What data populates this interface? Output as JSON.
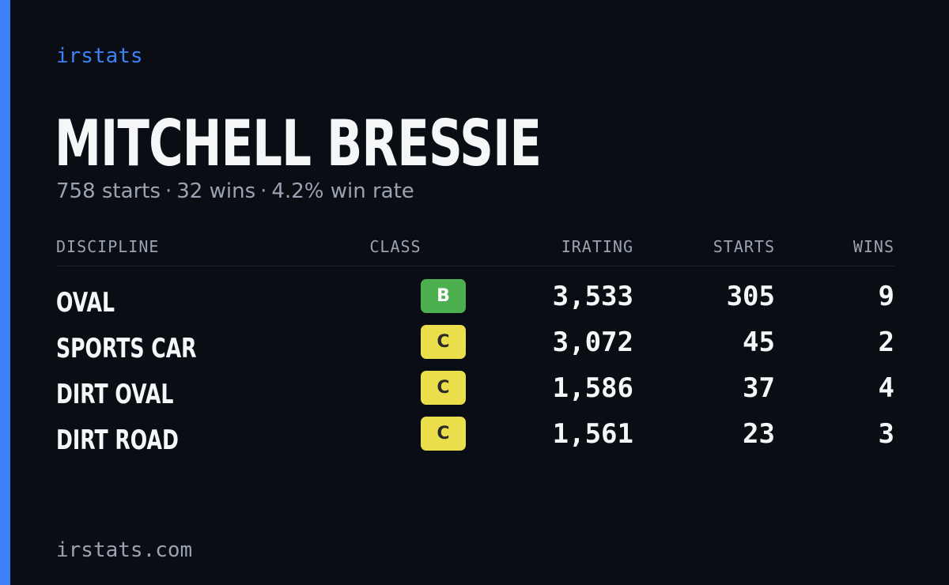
{
  "brand": "irstats",
  "driver": {
    "name": "MITCHELL BRESSIE",
    "starts_text": "758 starts",
    "wins_text": "32 wins",
    "win_rate_text": "4.2% win rate",
    "separator": "·"
  },
  "table": {
    "headers": {
      "discipline": "DISCIPLINE",
      "class": "CLASS",
      "irating": "IRATING",
      "starts": "STARTS",
      "wins": "WINS"
    },
    "rows": [
      {
        "discipline": "OVAL",
        "class": "B",
        "irating": "3,533",
        "starts": "305",
        "wins": "9"
      },
      {
        "discipline": "SPORTS CAR",
        "class": "C",
        "irating": "3,072",
        "starts": "45",
        "wins": "2"
      },
      {
        "discipline": "DIRT OVAL",
        "class": "C",
        "irating": "1,586",
        "starts": "37",
        "wins": "4"
      },
      {
        "discipline": "DIRT ROAD",
        "class": "C",
        "irating": "1,561",
        "starts": "23",
        "wins": "3"
      }
    ]
  },
  "class_colors": {
    "B": {
      "bg": "#4caf50",
      "fg": "#ffffff"
    },
    "C": {
      "bg": "#eadf4a",
      "fg": "#2a2a2a"
    }
  },
  "colors": {
    "accent": "#3b82f6",
    "background": "#0a0d14",
    "text": "#f5f6f8",
    "muted": "#9aa3b2"
  },
  "footer": "irstats.com"
}
